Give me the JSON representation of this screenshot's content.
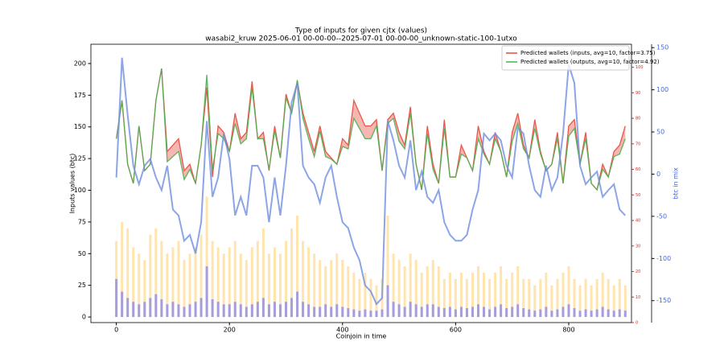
{
  "chart_data": {
    "type": "line",
    "title": "Type of inputs for given cjtx (values)",
    "subtitle": "wasabi2_kruw 2025-06-01 00-00-00--2025-07-01 00-00-00_unknown-static-100-1utxo",
    "xlabel": "Coinjoin in time",
    "ylabel": "Inputs values (btc)",
    "y3label": "btc in mix",
    "xlim": [
      -45,
      911
    ],
    "xticks": [
      0,
      200,
      400,
      600,
      800
    ],
    "ylim": [
      -4.4,
      215.2
    ],
    "yticks": [
      0,
      25,
      50,
      75,
      100,
      125,
      150,
      175,
      200
    ],
    "y2lim": [
      0,
      109
    ],
    "y2ticks": [
      0,
      10,
      20,
      30,
      40,
      50,
      60,
      70,
      80,
      90,
      100
    ],
    "y2color": "#d62728",
    "y3lim": [
      -176,
      154
    ],
    "y3ticks": [
      -150,
      -100,
      -50,
      0,
      50,
      100,
      150
    ],
    "y3color": "#4169e1",
    "legend": "upper right",
    "fill_between": true,
    "x": [
      0,
      10,
      20,
      30,
      40,
      50,
      60,
      70,
      80,
      90,
      100,
      110,
      120,
      130,
      140,
      150,
      160,
      170,
      180,
      190,
      200,
      210,
      220,
      230,
      240,
      250,
      260,
      270,
      280,
      290,
      300,
      310,
      320,
      330,
      340,
      350,
      360,
      370,
      380,
      390,
      400,
      410,
      420,
      430,
      440,
      450,
      460,
      470,
      480,
      490,
      500,
      510,
      520,
      530,
      540,
      550,
      560,
      570,
      580,
      590,
      600,
      610,
      620,
      630,
      640,
      650,
      660,
      670,
      680,
      690,
      700,
      710,
      720,
      730,
      740,
      750,
      760,
      770,
      780,
      790,
      800,
      810,
      820,
      830,
      840,
      850,
      860,
      870,
      880,
      890,
      900
    ],
    "series": [
      {
        "type": "bar",
        "axis": "y",
        "color": "#ffd98a",
        "values": [
          60,
          75,
          70,
          55,
          50,
          45,
          65,
          70,
          60,
          50,
          55,
          60,
          45,
          50,
          55,
          65,
          95,
          60,
          55,
          50,
          55,
          60,
          50,
          45,
          55,
          60,
          70,
          50,
          55,
          50,
          60,
          70,
          80,
          60,
          55,
          50,
          45,
          40,
          45,
          50,
          45,
          40,
          35,
          30,
          35,
          30,
          25,
          30,
          80,
          50,
          45,
          40,
          50,
          45,
          35,
          40,
          45,
          40,
          30,
          35,
          30,
          35,
          30,
          35,
          40,
          35,
          30,
          35,
          40,
          30,
          35,
          40,
          30,
          30,
          25,
          30,
          35,
          25,
          30,
          35,
          40,
          30,
          25,
          30,
          25,
          30,
          35,
          30,
          25,
          30,
          25
        ]
      },
      {
        "type": "bar",
        "axis": "y",
        "color": "#8080f0",
        "values": [
          30,
          20,
          15,
          12,
          10,
          12,
          15,
          18,
          14,
          10,
          12,
          10,
          8,
          10,
          12,
          15,
          40,
          14,
          12,
          10,
          10,
          12,
          10,
          8,
          10,
          12,
          15,
          10,
          12,
          10,
          12,
          15,
          20,
          12,
          10,
          8,
          8,
          10,
          8,
          10,
          8,
          7,
          6,
          5,
          6,
          5,
          5,
          6,
          25,
          12,
          10,
          8,
          12,
          10,
          8,
          10,
          10,
          8,
          7,
          8,
          6,
          8,
          7,
          8,
          10,
          8,
          6,
          8,
          10,
          7,
          8,
          10,
          7,
          6,
          5,
          6,
          8,
          5,
          6,
          8,
          10,
          7,
          5,
          6,
          5,
          6,
          8,
          6,
          5,
          6,
          5
        ]
      },
      {
        "type": "line",
        "axis": "y2",
        "name": "Predicted wallets (inputs, avg=10, factor=3.75)",
        "color": "#e8493c",
        "values": [
          72,
          87,
          62,
          54.5,
          77,
          59.5,
          62,
          87,
          99.5,
          67,
          69.5,
          72,
          59.5,
          62,
          54.5,
          69.5,
          92,
          57,
          77,
          74.5,
          67,
          82,
          72,
          74.5,
          94.5,
          72,
          74.5,
          59.5,
          77,
          64.5,
          89.5,
          82,
          94.5,
          82,
          74.5,
          67,
          77,
          67,
          64.5,
          62,
          72,
          69.5,
          87,
          82,
          77,
          77,
          79.5,
          59.5,
          79.5,
          82,
          74.5,
          69.5,
          84.5,
          62,
          52,
          77,
          62,
          54.5,
          79.5,
          57,
          57,
          69.5,
          64.5,
          59.5,
          77,
          67,
          62,
          74.5,
          67,
          57,
          74.5,
          82,
          69.5,
          64.5,
          79.5,
          67,
          59.5,
          62,
          74.5,
          54.5,
          77,
          79.5,
          62,
          74.5,
          54.5,
          52,
          62,
          57,
          67,
          69.5,
          77
        ]
      },
      {
        "type": "line",
        "axis": "y2",
        "name": "Predicted wallets (outputs, avg=10, factor=4.92)",
        "color": "#4caf50",
        "values": [
          72,
          87,
          62,
          54.5,
          77,
          59.5,
          62,
          87,
          99.5,
          63,
          65,
          67,
          56,
          60,
          54.5,
          69.5,
          97,
          60,
          74,
          72,
          67,
          78,
          70,
          72,
          92,
          72,
          72,
          60,
          75,
          64.5,
          88,
          82,
          95,
          80,
          72,
          65,
          75,
          65,
          64,
          62,
          69,
          68,
          80,
          76,
          72,
          72,
          77,
          59.5,
          78,
          80,
          71,
          68,
          82,
          62,
          52,
          74,
          60,
          54.5,
          76,
          57,
          57,
          66,
          64.5,
          59.5,
          72,
          66,
          62,
          72,
          67,
          57,
          71,
          78,
          68,
          64.5,
          76,
          66,
          59.5,
          62,
          72,
          54.5,
          73,
          76,
          62,
          72,
          54.5,
          52,
          60,
          57,
          65,
          66,
          72
        ]
      },
      {
        "type": "line",
        "axis": "y3",
        "color": "#6f8ee0",
        "values": [
          -4,
          138,
          70,
          10,
          -12,
          10,
          18,
          -4,
          -19,
          10,
          -42,
          -49,
          -79,
          -72,
          -94,
          -57,
          63,
          -27,
          -4,
          48,
          18,
          -49,
          -27,
          -49,
          10,
          10,
          -4,
          -57,
          -4,
          -49,
          10,
          85,
          108,
          10,
          -4,
          -12,
          -34,
          -4,
          10,
          -27,
          -57,
          -64,
          -87,
          -102,
          -132,
          -139,
          -154,
          -147,
          63,
          40,
          10,
          -4,
          40,
          -19,
          3,
          -27,
          -34,
          -19,
          -57,
          -72,
          -79,
          -79,
          -72,
          -42,
          -19,
          48,
          40,
          48,
          40,
          10,
          -4,
          55,
          48,
          10,
          -19,
          -27,
          10,
          -19,
          -4,
          48,
          130,
          108,
          10,
          -12,
          -4,
          3,
          -27,
          -19,
          -12,
          -42,
          -49
        ]
      }
    ]
  }
}
